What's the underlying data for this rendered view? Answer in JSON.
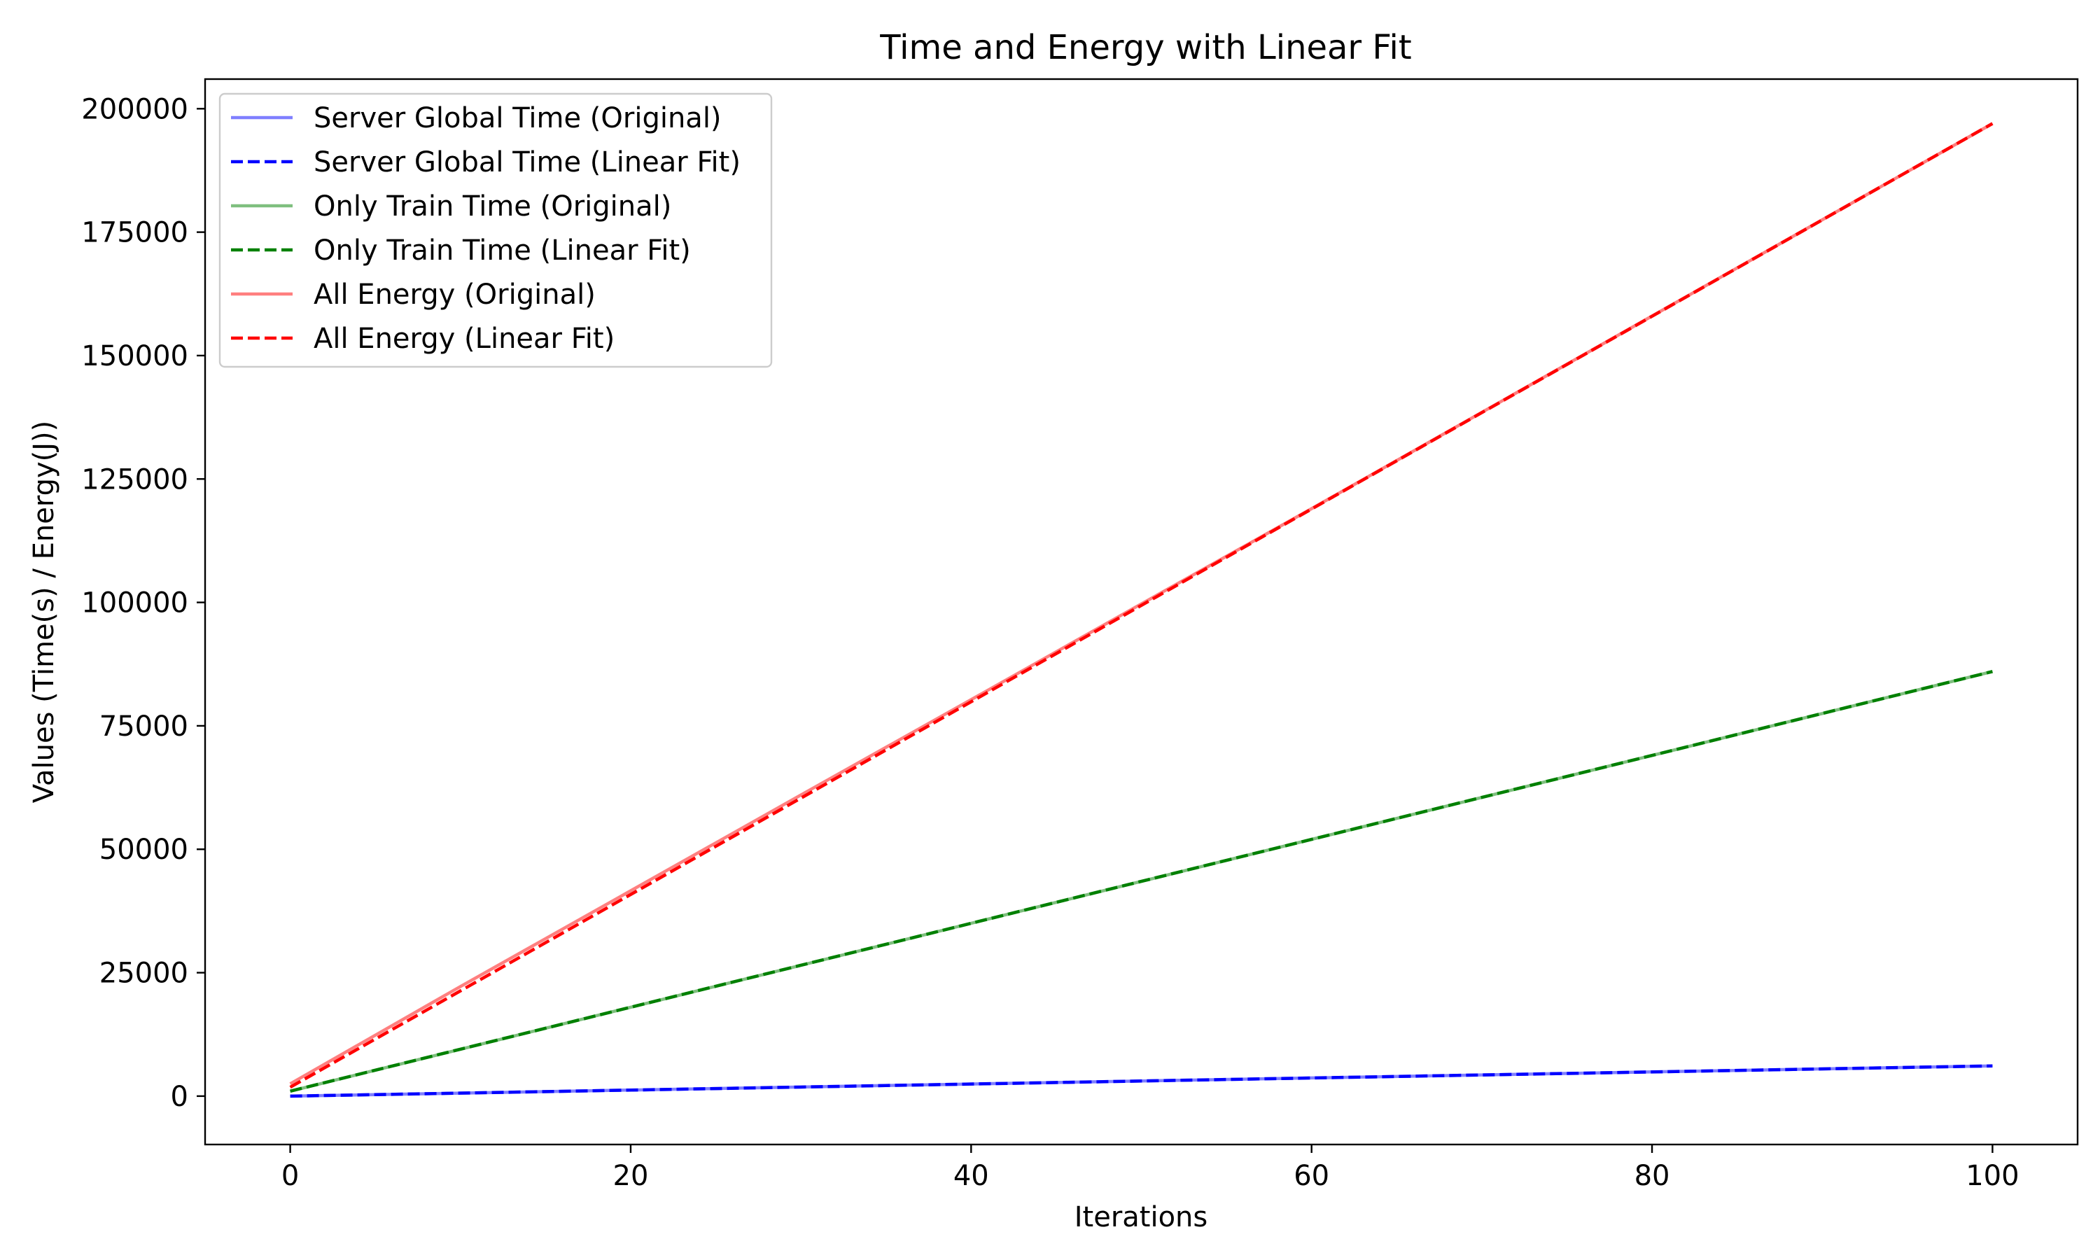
{
  "chart_data": {
    "type": "line",
    "title": "Time and Energy with Linear Fit",
    "xlabel": "Iterations",
    "ylabel": "Values (Time(s) / Energy(J))",
    "xlim": [
      -5,
      105
    ],
    "ylim": [
      -9800,
      206000
    ],
    "xticks": [
      0,
      20,
      40,
      60,
      80,
      100
    ],
    "yticks": [
      0,
      25000,
      50000,
      75000,
      100000,
      125000,
      150000,
      175000,
      200000
    ],
    "grid": false,
    "legend_position": "top-left",
    "series": [
      {
        "name": "Server Global Time (Original)",
        "color": "#0000ff",
        "style": "solid",
        "alpha": 0.5,
        "x": [
          0,
          10,
          20,
          30,
          40,
          50,
          60,
          70,
          80,
          90,
          100
        ],
        "y": [
          0,
          610,
          1230,
          1840,
          2450,
          3060,
          3680,
          4290,
          4900,
          5510,
          6120
        ]
      },
      {
        "name": "Server Global Time (Linear Fit)",
        "color": "#0000ff",
        "style": "dashed",
        "alpha": 1,
        "x": [
          0,
          100
        ],
        "y": [
          0,
          6120
        ]
      },
      {
        "name": "Only Train Time (Original)",
        "color": "#008000",
        "style": "solid",
        "alpha": 0.5,
        "x": [
          0,
          10,
          20,
          30,
          40,
          50,
          60,
          70,
          80,
          90,
          100
        ],
        "y": [
          1000,
          9500,
          18000,
          26500,
          35000,
          43500,
          52000,
          60500,
          69000,
          77500,
          86000
        ]
      },
      {
        "name": "Only Train Time (Linear Fit)",
        "color": "#008000",
        "style": "dashed",
        "alpha": 1,
        "x": [
          0,
          100
        ],
        "y": [
          1000,
          86000
        ]
      },
      {
        "name": "All Energy (Original)",
        "color": "#ff0000",
        "style": "solid",
        "alpha": 0.5,
        "x": [
          0,
          10,
          20,
          30,
          40,
          50,
          60,
          70,
          80,
          90,
          100
        ],
        "y": [
          2500,
          22200,
          41600,
          61000,
          80300,
          99700,
          119000,
          138500,
          158000,
          177500,
          197000
        ]
      },
      {
        "name": "All Energy (Linear Fit)",
        "color": "#ff0000",
        "style": "dashed",
        "alpha": 1,
        "x": [
          0,
          100
        ],
        "y": [
          1800,
          197000
        ]
      }
    ]
  }
}
